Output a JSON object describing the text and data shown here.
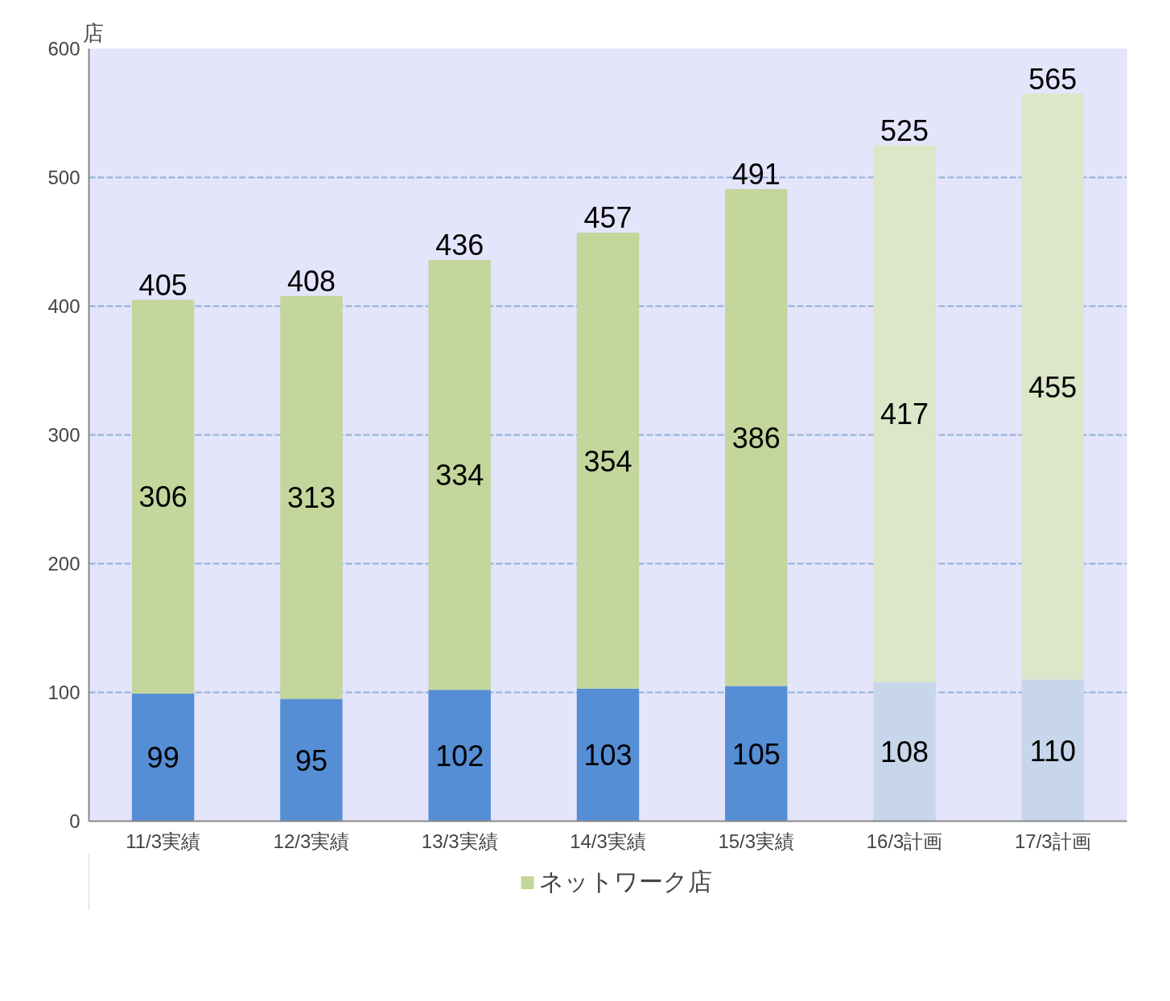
{
  "chart_data": {
    "type": "bar",
    "stacked": true,
    "ylabel": "店",
    "categories": [
      "11/3実績",
      "12/3実績",
      "13/3実績",
      "14/3実績",
      "15/3実績",
      "16/3計画",
      "17/3計画"
    ],
    "series": [
      {
        "color": "#558ed5",
        "colors": [
          "#558ed5",
          "#558ed5",
          "#558ed5",
          "#558ed5",
          "#558ed5",
          "#c8d6ec",
          "#c8d6ec"
        ],
        "values": [
          99,
          95,
          102,
          103,
          105,
          108,
          110
        ]
      },
      {
        "name": "ネットワーク店",
        "color": "#c3d69b",
        "colors": [
          "#c3d69b",
          "#c3d69b",
          "#c3d69b",
          "#c3d69b",
          "#c3d69b",
          "#dde6c8",
          "#dde6c8"
        ],
        "values": [
          306,
          313,
          334,
          354,
          386,
          417,
          455
        ]
      }
    ],
    "totals": [
      "405",
      "408",
      "436",
      "457",
      "491",
      "525",
      "565"
    ],
    "data_labels": true,
    "ylim": [
      0,
      600
    ],
    "yticks": [
      0,
      100,
      200,
      300,
      400,
      500,
      600
    ],
    "grid": "y",
    "legend": "bottom"
  }
}
